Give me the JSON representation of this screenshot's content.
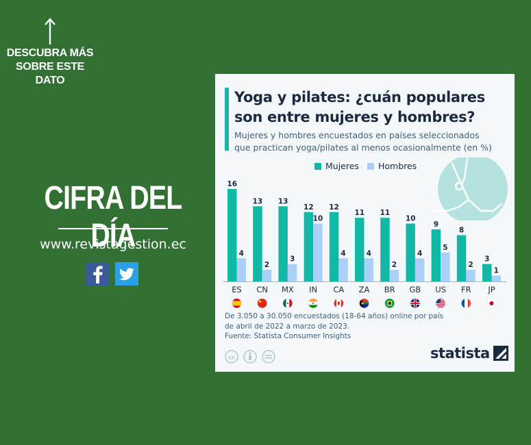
{
  "promo": {
    "arrow_icon": "arrow-up-icon",
    "descubra_line1": "DESCUBRA MÁS",
    "descubra_line2": "SOBRE ESTE",
    "descubra_line3": "DATO",
    "headline": "CIFRA DEL DÍA",
    "website": "www.revistagestion.ec",
    "facebook_icon": "facebook-icon",
    "twitter_icon": "twitter-icon"
  },
  "card": {
    "title_line1": "Yoga y pilates: ¿cuán populares",
    "title_line2": "son entre mujeres y hombres?",
    "subtitle_line1": "Mujeres y hombres encuestados en países seleccionados",
    "subtitle_line2": "que practican yoga/pilates al menos ocasionalmente (en %)",
    "note_line1": "De 3.050 a 30.050 encuestados (18-64 años) online por país",
    "note_line2": "de abril de 2022 a marzo de 2023.",
    "source": "Fuente: Statista Consumer Insights",
    "logo": "statista",
    "illustration": "yoga-pose-illustration"
  },
  "colors": {
    "background": "#327033",
    "mujeres": "#11b8a5",
    "hombres": "#a9d1f7",
    "text": "#1b2a3f"
  },
  "chart_data": {
    "type": "bar",
    "title": "Yoga y pilates: ¿cuán populares son entre mujeres y hombres?",
    "categories": [
      "ES",
      "CN",
      "MX",
      "IN",
      "CA",
      "ZA",
      "BR",
      "GB",
      "US",
      "FR",
      "JP"
    ],
    "series": [
      {
        "name": "Mujeres",
        "values": [
          16,
          13,
          13,
          12,
          12,
          11,
          11,
          10,
          9,
          8,
          3
        ]
      },
      {
        "name": "Hombres",
        "values": [
          4,
          2,
          3,
          10,
          4,
          4,
          2,
          4,
          5,
          2,
          1
        ]
      }
    ],
    "flags": [
      "spain-flag",
      "china-flag",
      "mexico-flag",
      "india-flag",
      "canada-flag",
      "south-africa-flag",
      "brazil-flag",
      "uk-flag",
      "usa-flag",
      "france-flag",
      "japan-flag"
    ],
    "ylim": [
      0,
      16
    ],
    "grid": false,
    "legend": "top-center",
    "data_labels": true
  }
}
